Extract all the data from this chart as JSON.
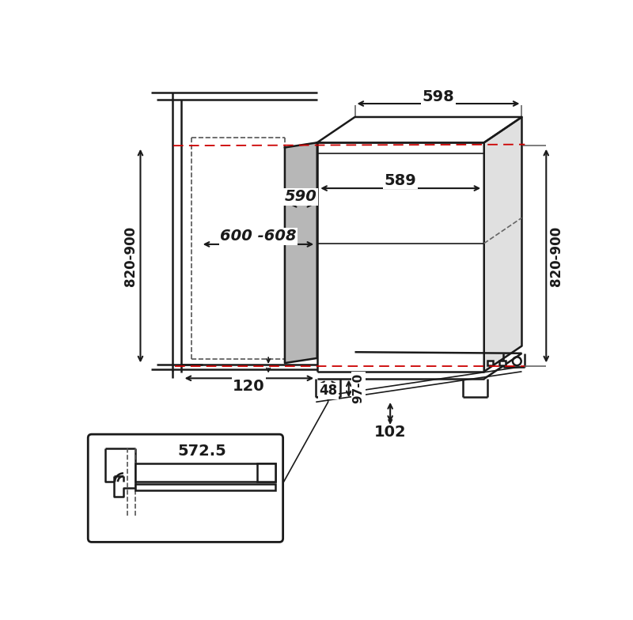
{
  "bg_color": "#ffffff",
  "lc": "#1a1a1a",
  "gray_fill": "#b0b0b0",
  "red_color": "#cc0000",
  "lw_main": 1.8,
  "lw_thin": 1.2,
  "lw_thick": 2.2,
  "labels": {
    "598": "598",
    "589": "589",
    "590": "590",
    "600_608": "600 -608",
    "820_900": "820-900",
    "120": "120",
    "48": "48",
    "97_0": "97-0",
    "102": "102",
    "572_5": "572.5"
  },
  "fontsize_large": 14,
  "fontsize_med": 12,
  "fontsize_small": 11
}
